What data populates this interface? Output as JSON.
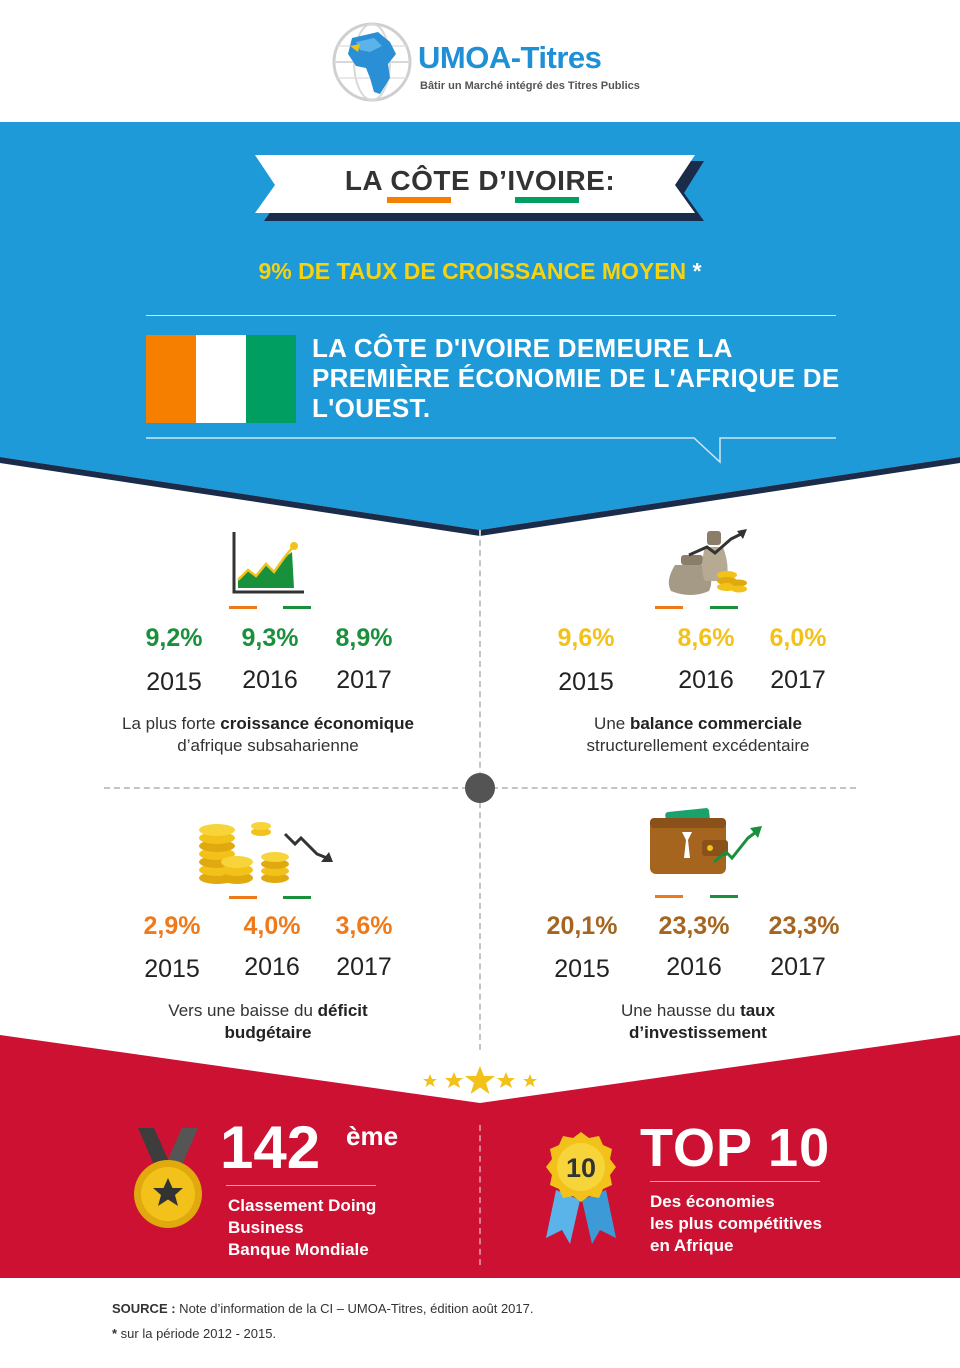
{
  "header": {
    "logo_name": "UMOA-Titres",
    "logo_tagline": "Bâtir un Marché intégré des Titres Publics"
  },
  "hero": {
    "banner_title": "LA CÔTE D’IVOIRE:",
    "subtitle": "9% DE TAUX DE CROISSANCE MOYEN",
    "subtitle_mark": "*",
    "headline": "LA CÔTE D'IVOIRE DEMEURE LA PREMIÈRE ÉCONOMIE DE L'AFRIQUE DE L'OUEST."
  },
  "stats": [
    {
      "id": "croissance",
      "values": [
        "9,2%",
        "9,3%",
        "8,9%"
      ],
      "years": [
        "2015",
        "2016",
        "2017"
      ],
      "desc_before": "La plus forte ",
      "desc_bold": "croissance économique",
      "desc_after": " d’afrique subsaharienne"
    },
    {
      "id": "balance",
      "values": [
        "9,6%",
        "8,6%",
        "6,0%"
      ],
      "years": [
        "2015",
        "2016",
        "2017"
      ],
      "desc_before": "Une ",
      "desc_bold": "balance commerciale",
      "desc_after": " structurellement excédentaire"
    },
    {
      "id": "deficit",
      "values": [
        "2,9%",
        "4,0%",
        "3,6%"
      ],
      "years": [
        "2015",
        "2016",
        "2017"
      ],
      "desc_before": "Vers une baisse du ",
      "desc_bold": "déficit budgétaire",
      "desc_after": ""
    },
    {
      "id": "investissement",
      "values": [
        "20,1%",
        "23,3%",
        "23,3%"
      ],
      "years": [
        "2015",
        "2016",
        "2017"
      ],
      "desc_before": "Une hausse du ",
      "desc_bold": "taux d’investissement",
      "desc_after": ""
    }
  ],
  "awards": {
    "rank_number": "142",
    "rank_suffix": "ème",
    "rank_desc": [
      "Classement Doing",
      "Business",
      "Banque Mondiale"
    ],
    "ribbon_number": "10",
    "top_title": "TOP 10",
    "top_desc": [
      "Des économies",
      "les plus compétitives",
      "en Afrique"
    ]
  },
  "footer": {
    "source_label": "SOURCE :",
    "source_text": " Note d’information de la CI – UMOA-Titres, édition août 2017.",
    "footnote_mark": "*",
    "footnote_text": " sur la période 2012 - 2015."
  },
  "colors": {
    "blue": "#1f9ad9",
    "navy": "#1a2c4a",
    "red": "#cc1133",
    "green": "#19903c",
    "yellow": "#f2c21b",
    "orange": "#ef7a1a",
    "brown": "#a5651f",
    "flag_orange": "#f77f00",
    "flag_green": "#009e60"
  },
  "icons": {
    "croissance": "growth-chart-icon",
    "balance": "money-bag-icon",
    "deficit": "coin-stacks-icon",
    "investissement": "wallet-icon",
    "medal": "medal-icon",
    "ribbon": "award-ribbon-icon"
  }
}
